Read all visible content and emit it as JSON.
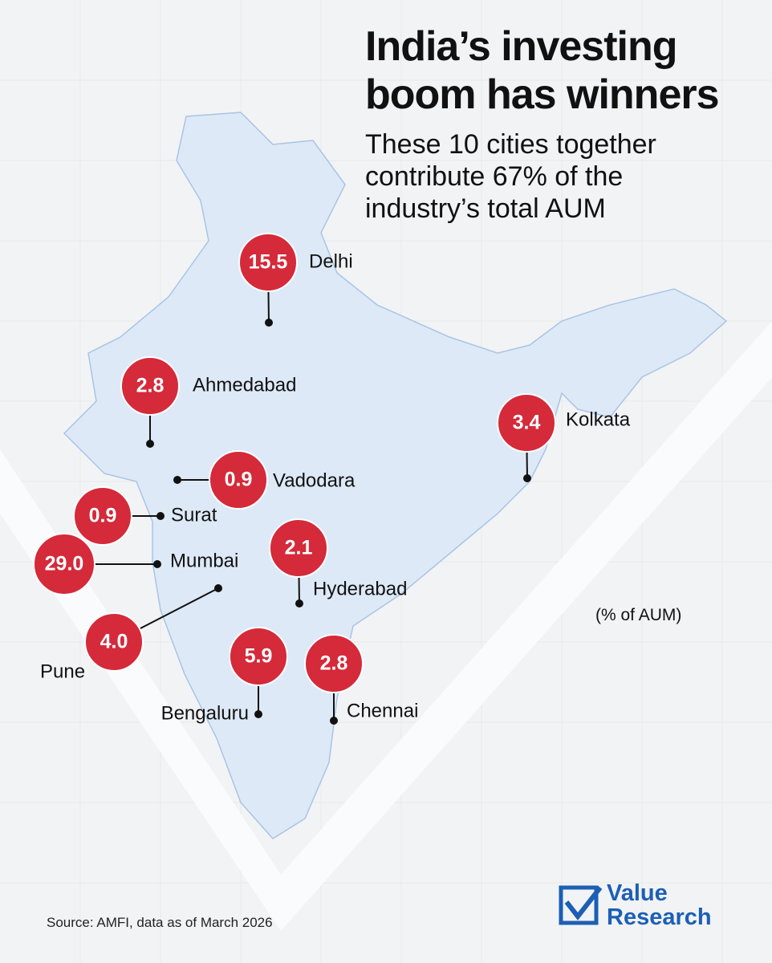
{
  "title": "India’s investing boom has winners",
  "subtitle": "These 10 cities together contribute 67% of the industry’s total AUM",
  "unit_note": "(% of AUM)",
  "source": "Source: AMFI, data as of March 2026",
  "logo": "Value Research",
  "map": {
    "cities": [
      "Delhi",
      "Ahmedabad",
      "Vadodara",
      "Surat",
      "Mumbai",
      "Hyderabad",
      "Pune",
      "Bengaluru",
      "Chennai",
      "Kolkata"
    ],
    "values": [
      15.5,
      2.8,
      0.9,
      0.9,
      29,
      2.1,
      4,
      5.9,
      2.8,
      3.4
    ],
    "value_labels": [
      "15.5",
      "2.8",
      "0.9",
      "0.9",
      "29.0",
      "2.1",
      "4.0",
      "5.9",
      "2.8",
      "3.4"
    ],
    "color": "#d42a3a"
  }
}
